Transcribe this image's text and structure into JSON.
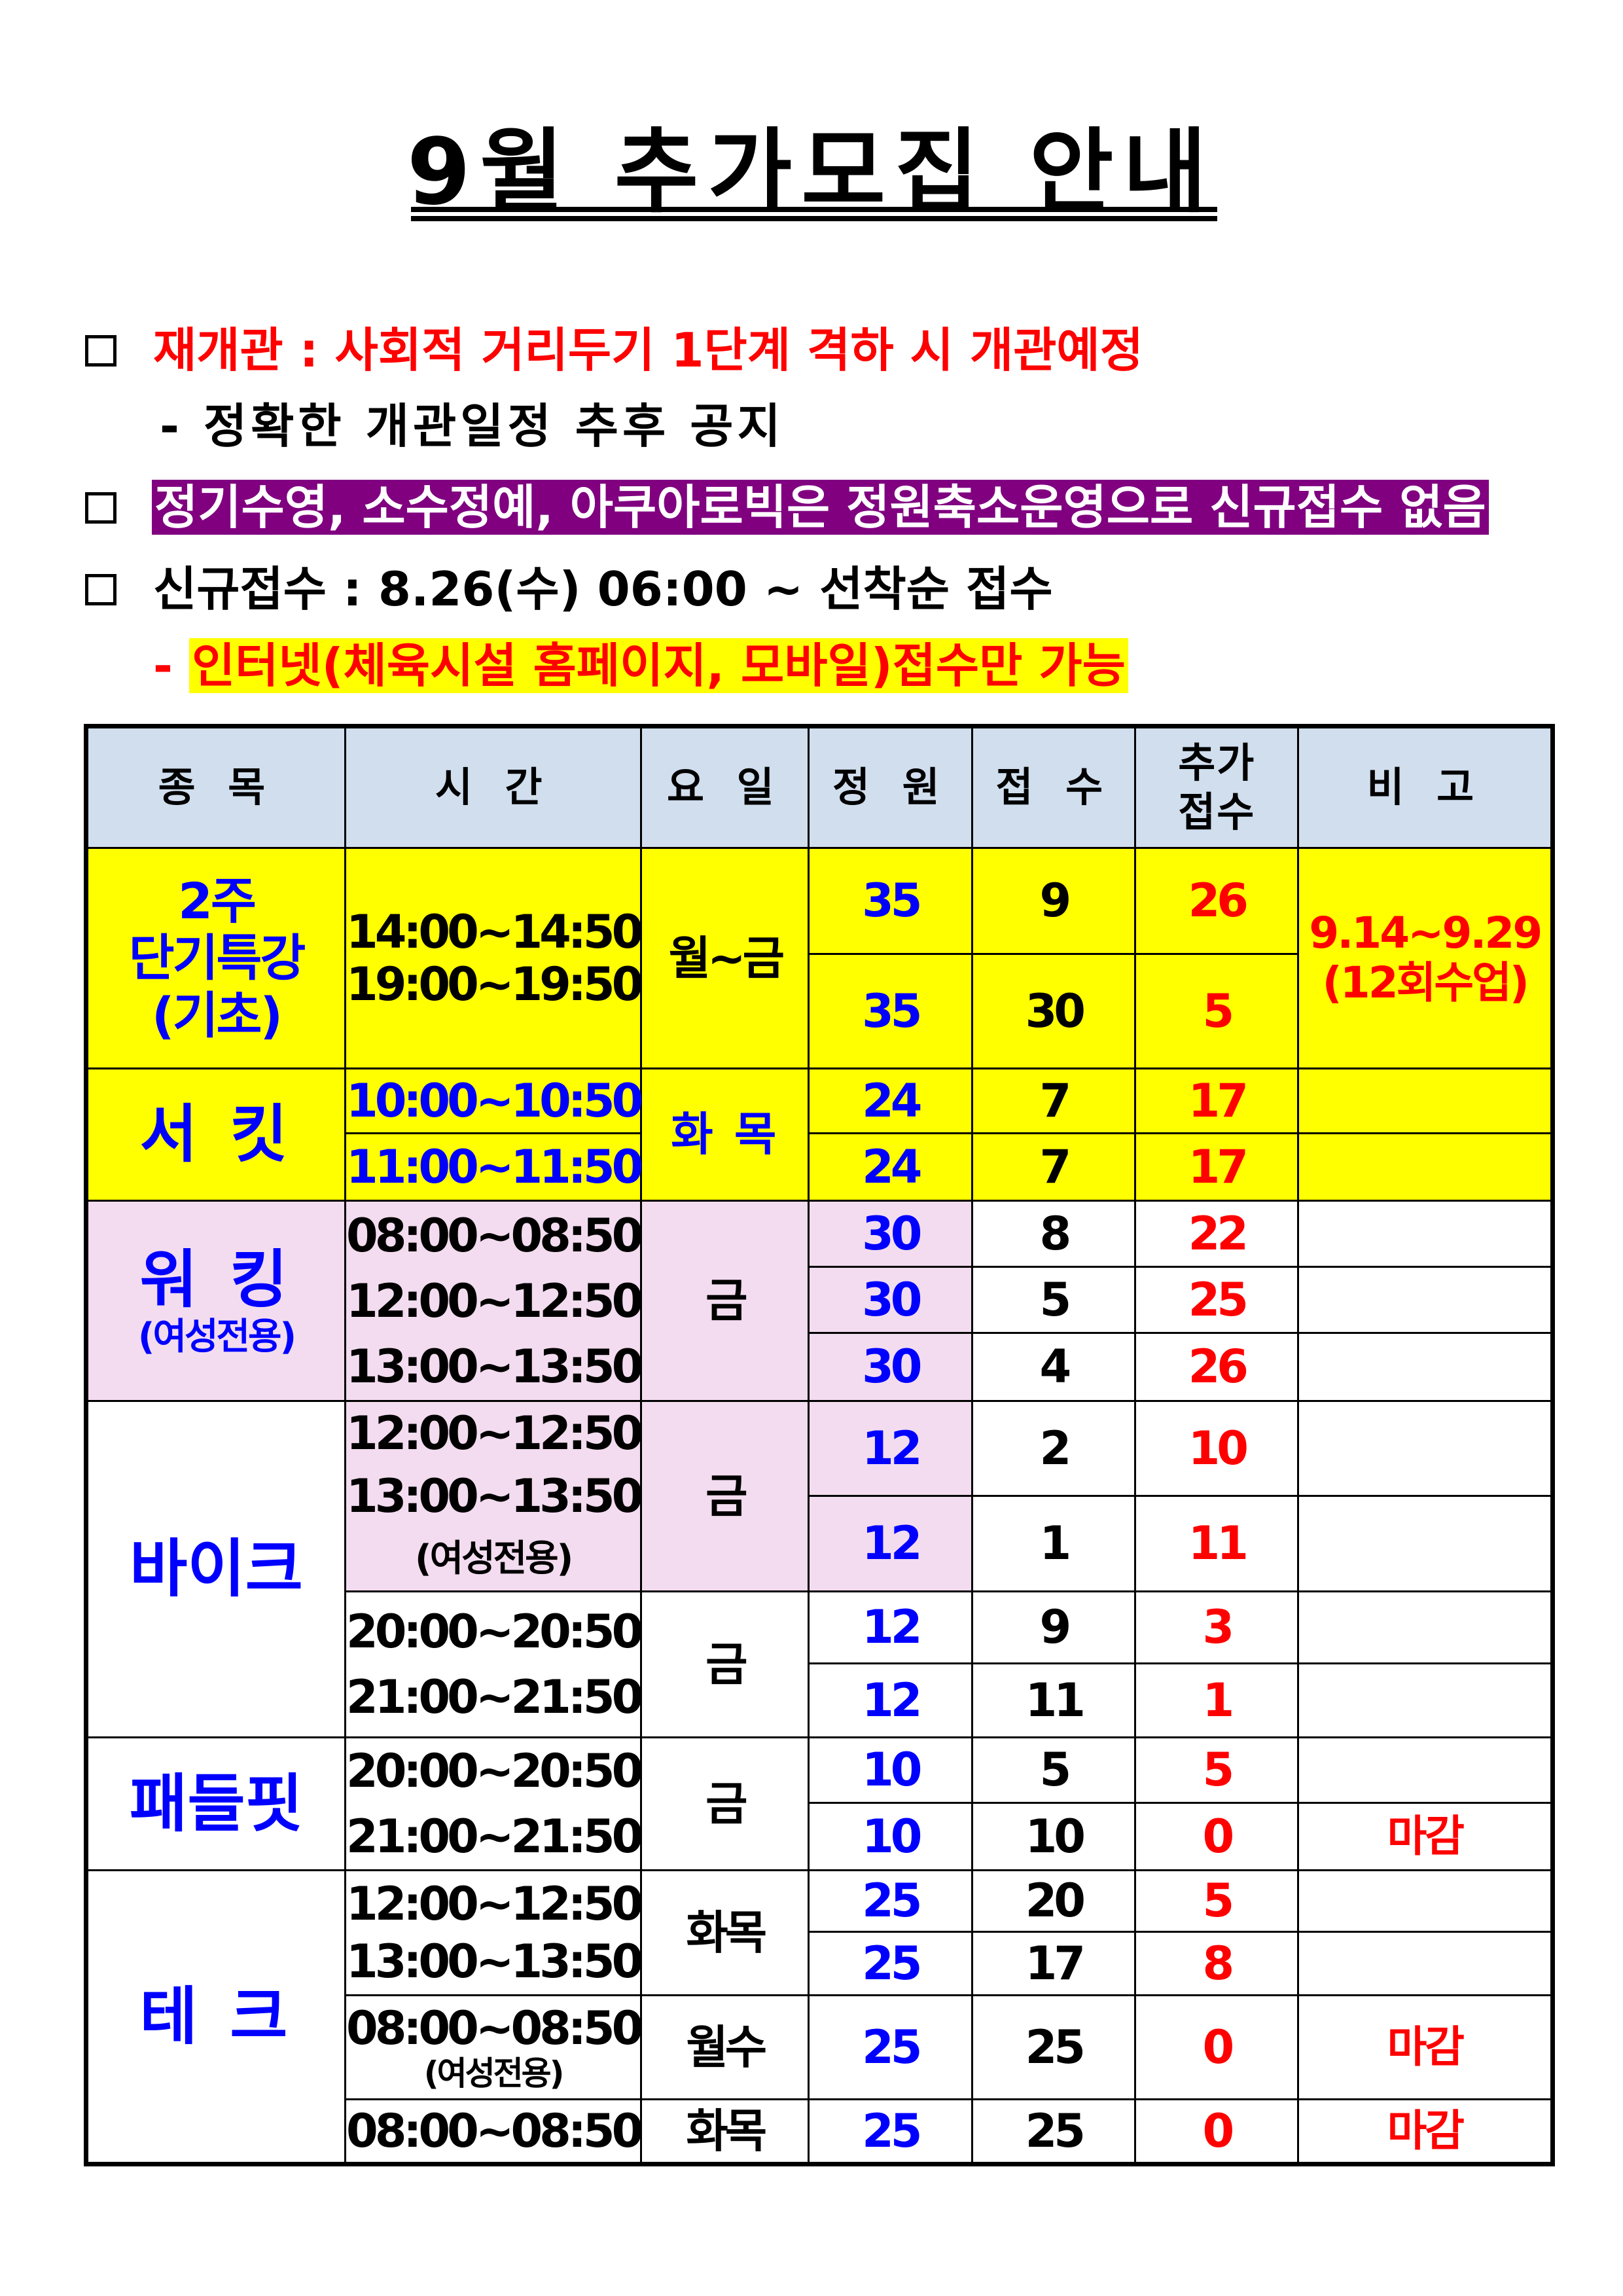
{
  "title": "9월 추가모집 안내",
  "notices": [
    {
      "text": "재개관 : 사회적 거리두기 1단계 격하 시 개관예정"
    },
    {
      "text": "- 정확한 개관일정 추후 공지"
    },
    {
      "text": "정기수영, 소수정예, 아쿠아로빅은 정원축소운영으로 신규접수 없음"
    },
    {
      "text": "신규접수 : 8.26(수) 06:00 ~ 선착순 접수"
    },
    {
      "dash": "-",
      "text": "인터넷(체육시설 홈페이지, 모바일)접수만 가능"
    }
  ],
  "colors": {
    "blue": "#0000ff",
    "red": "#ff0000",
    "yellow": "#ffff00",
    "pink": "#f3dcef",
    "header": "#d0deee",
    "purple": "#800080"
  },
  "table": {
    "headers": [
      "종 목",
      "시 간",
      "요 일",
      "정 원",
      "접 수",
      "추가",
      "접수",
      "비 고"
    ],
    "groups": {
      "g1": {
        "sport": [
          "2주",
          "단기특강",
          "(기초)"
        ],
        "times": [
          "14:00~14:50",
          "19:00~19:50"
        ],
        "day": "월~금",
        "note": [
          "9.14~9.29",
          "(12회수업)"
        ]
      },
      "g2": {
        "sport": "서 킷",
        "times": [
          "10:00~10:50",
          "11:00~11:50"
        ],
        "day": "화 목"
      },
      "g3": {
        "sport": "워 킹",
        "sub": "(여성전용)",
        "times": [
          "08:00~08:50",
          "12:00~12:50",
          "13:00~13:50"
        ],
        "day": "금"
      },
      "g4": {
        "sport": "바이크",
        "timesA": [
          "12:00~12:50",
          "13:00~13:50"
        ],
        "subA": "(여성전용)",
        "dayA": "금",
        "timesB": [
          "20:00~20:50",
          "21:00~21:50"
        ],
        "dayB": "금"
      },
      "g5": {
        "sport": "패들핏",
        "times": [
          "20:00~20:50",
          "21:00~21:50"
        ],
        "day": "금"
      },
      "g6": {
        "sport": "테 크",
        "timesA": [
          "12:00~12:50",
          "13:00~13:50"
        ],
        "dayA": "화목",
        "timeB": "08:00~08:50",
        "subB": "(여성전용)",
        "dayB": "월수",
        "timeC": "08:00~08:50",
        "dayC": "화목"
      }
    },
    "rows": [
      {
        "cap": "35",
        "reg": "9",
        "add": "26"
      },
      {
        "cap": "35",
        "reg": "30",
        "add": "5"
      },
      {
        "cap": "24",
        "reg": "7",
        "add": "17",
        "note": ""
      },
      {
        "cap": "24",
        "reg": "7",
        "add": "17",
        "note": ""
      },
      {
        "cap": "30",
        "reg": "8",
        "add": "22",
        "note": ""
      },
      {
        "cap": "30",
        "reg": "5",
        "add": "25",
        "note": ""
      },
      {
        "cap": "30",
        "reg": "4",
        "add": "26",
        "note": ""
      },
      {
        "cap": "12",
        "reg": "2",
        "add": "10",
        "note": ""
      },
      {
        "cap": "12",
        "reg": "1",
        "add": "11",
        "note": ""
      },
      {
        "cap": "12",
        "reg": "9",
        "add": "3",
        "note": ""
      },
      {
        "cap": "12",
        "reg": "11",
        "add": "1",
        "note": ""
      },
      {
        "cap": "10",
        "reg": "5",
        "add": "5",
        "note": ""
      },
      {
        "cap": "10",
        "reg": "10",
        "add": "0",
        "note": "마감"
      },
      {
        "cap": "25",
        "reg": "20",
        "add": "5",
        "note": ""
      },
      {
        "cap": "25",
        "reg": "17",
        "add": "8",
        "note": ""
      },
      {
        "cap": "25",
        "reg": "25",
        "add": "0",
        "note": "마감"
      },
      {
        "cap": "25",
        "reg": "25",
        "add": "0",
        "note": "마감"
      }
    ]
  }
}
